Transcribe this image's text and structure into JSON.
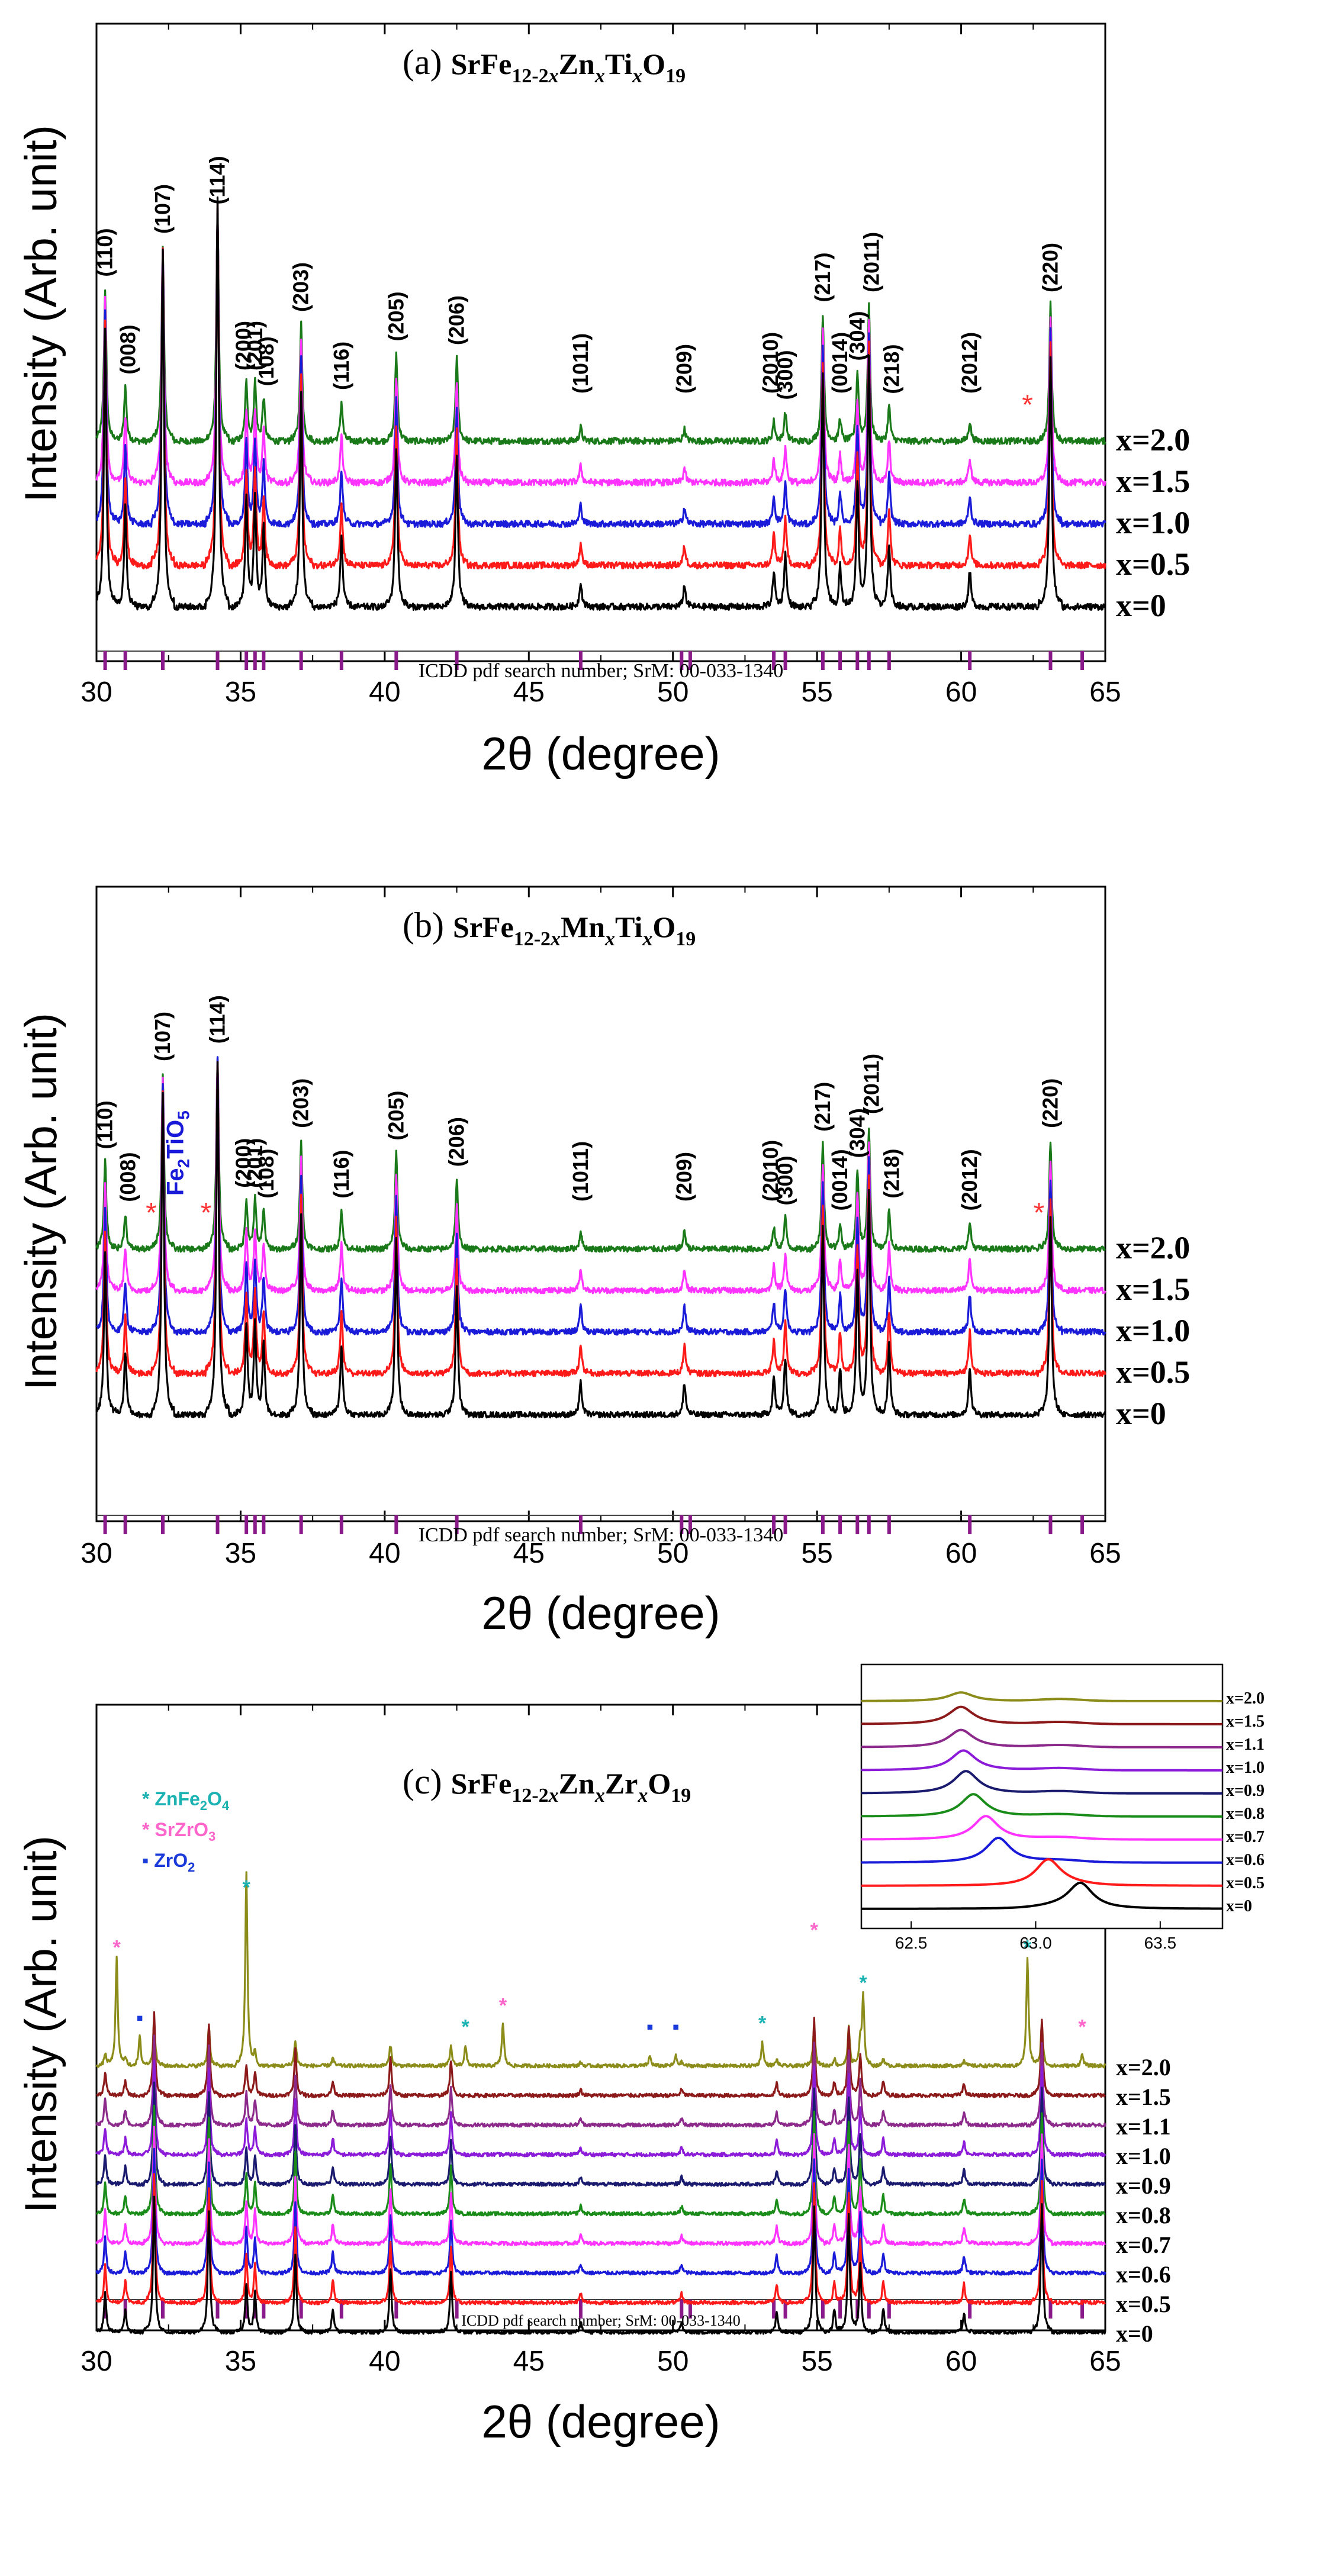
{
  "chart_data": [
    {
      "type": "line",
      "label": "(a)",
      "title_base": "SrFe",
      "title_parts": [
        "12-2",
        "x",
        "Zn",
        "x",
        "Ti",
        "x",
        "O",
        "19"
      ],
      "title": "(a) SrFe12-2xZnxTixO19",
      "xlabel": "2θ (degree)",
      "ylabel": "Intensity (Arb. unit)",
      "xlim": [
        30,
        65
      ],
      "xticks": [
        "30",
        "35",
        "40",
        "45",
        "50",
        "55",
        "60",
        "65"
      ],
      "reference_label": "ICDD pdf search number; SrM: 00-033-1340",
      "series": [
        {
          "name": "x=2.0",
          "color": "#1a7a1a"
        },
        {
          "name": "x=1.5",
          "color": "#ff33ff"
        },
        {
          "name": "x=1.0",
          "color": "#1a1ad9"
        },
        {
          "name": "x=0.5",
          "color": "#ff1a1a"
        },
        {
          "name": "x=0",
          "color": "#000000"
        }
      ],
      "peaks": [
        {
          "x": 30.3,
          "h": 0.78
        },
        {
          "x": 31.0,
          "h": 0.28
        },
        {
          "x": 32.3,
          "h": 1.0
        },
        {
          "x": 34.2,
          "h": 1.15
        },
        {
          "x": 35.2,
          "h": 0.3
        },
        {
          "x": 35.5,
          "h": 0.3
        },
        {
          "x": 35.8,
          "h": 0.22
        },
        {
          "x": 37.1,
          "h": 0.6
        },
        {
          "x": 38.5,
          "h": 0.2
        },
        {
          "x": 40.4,
          "h": 0.45
        },
        {
          "x": 42.5,
          "h": 0.43
        },
        {
          "x": 46.8,
          "h": 0.07
        },
        {
          "x": 50.4,
          "h": 0.06
        },
        {
          "x": 53.5,
          "h": 0.1
        },
        {
          "x": 53.9,
          "h": 0.15
        },
        {
          "x": 55.2,
          "h": 0.65
        },
        {
          "x": 55.8,
          "h": 0.12
        },
        {
          "x": 56.4,
          "h": 0.35
        },
        {
          "x": 56.8,
          "h": 0.7
        },
        {
          "x": 57.5,
          "h": 0.18
        },
        {
          "x": 60.3,
          "h": 0.1
        },
        {
          "x": 63.1,
          "h": 0.7
        }
      ],
      "hkl_labels": [
        {
          "label": "(110)",
          "x": 30.3
        },
        {
          "label": "(008)",
          "x": 31.1
        },
        {
          "label": "(107)",
          "x": 32.3
        },
        {
          "label": "(114)",
          "x": 34.2
        },
        {
          "label": "(200)",
          "x": 35.1
        },
        {
          "label": "(201)",
          "x": 35.5
        },
        {
          "label": "(108)",
          "x": 35.9
        },
        {
          "label": "(203)",
          "x": 37.1
        },
        {
          "label": "(116)",
          "x": 38.5
        },
        {
          "label": "(205)",
          "x": 40.4
        },
        {
          "label": "(206)",
          "x": 42.5
        },
        {
          "label": "(1011)",
          "x": 46.8
        },
        {
          "label": "(209)",
          "x": 50.4
        },
        {
          "label": "(2010)",
          "x": 53.4
        },
        {
          "label": "(300)",
          "x": 53.9
        },
        {
          "label": "(217)",
          "x": 55.2
        },
        {
          "label": "(0014)",
          "x": 55.8
        },
        {
          "label": "(304)",
          "x": 56.4
        },
        {
          "label": "(2011)",
          "x": 56.9
        },
        {
          "label": "(218)",
          "x": 57.6
        },
        {
          "label": "(2012)",
          "x": 60.3
        },
        {
          "label": "(220)",
          "x": 63.1
        }
      ],
      "impurity_marks": [
        {
          "x": 62.3,
          "symbol": "*",
          "series": "x=2.0"
        }
      ],
      "reference_peaks": [
        30.3,
        31.0,
        32.3,
        34.2,
        35.2,
        35.5,
        35.8,
        37.1,
        38.5,
        40.4,
        42.5,
        46.8,
        50.3,
        50.6,
        53.5,
        53.9,
        55.2,
        55.8,
        56.4,
        56.8,
        57.5,
        60.3,
        63.1,
        64.2
      ]
    },
    {
      "type": "line",
      "label": "(b)",
      "title_base": "SrFe",
      "title_parts": [
        "12-2",
        "x",
        "Mn",
        "x",
        "Ti",
        "x",
        "O",
        "19"
      ],
      "title": "(b) SrFe12-2xMnxTixO19",
      "xlabel": "2θ (degree)",
      "ylabel": "Intensity (Arb. unit)",
      "xlim": [
        30,
        65
      ],
      "xticks": [
        "30",
        "35",
        "40",
        "45",
        "50",
        "55",
        "60",
        "65"
      ],
      "reference_label": "ICDD pdf search number; SrM: 00-033-1340",
      "series": [
        {
          "name": "x=2.0",
          "color": "#1a7a1a"
        },
        {
          "name": "x=1.5",
          "color": "#ff33ff"
        },
        {
          "name": "x=1.0",
          "color": "#1a1ad9"
        },
        {
          "name": "x=0.5",
          "color": "#ff1a1a"
        },
        {
          "name": "x=0",
          "color": "#000000"
        }
      ],
      "peaks": [
        {
          "x": 30.3,
          "h": 0.5
        },
        {
          "x": 31.0,
          "h": 0.2
        },
        {
          "x": 32.3,
          "h": 1.0
        },
        {
          "x": 34.2,
          "h": 1.1
        },
        {
          "x": 35.2,
          "h": 0.28
        },
        {
          "x": 35.5,
          "h": 0.28
        },
        {
          "x": 35.8,
          "h": 0.22
        },
        {
          "x": 37.1,
          "h": 0.62
        },
        {
          "x": 38.5,
          "h": 0.22
        },
        {
          "x": 40.4,
          "h": 0.55
        },
        {
          "x": 42.5,
          "h": 0.4
        },
        {
          "x": 46.8,
          "h": 0.1
        },
        {
          "x": 50.4,
          "h": 0.1
        },
        {
          "x": 53.5,
          "h": 0.12
        },
        {
          "x": 53.9,
          "h": 0.18
        },
        {
          "x": 55.2,
          "h": 0.6
        },
        {
          "x": 55.8,
          "h": 0.15
        },
        {
          "x": 56.4,
          "h": 0.45
        },
        {
          "x": 56.8,
          "h": 0.7
        },
        {
          "x": 57.5,
          "h": 0.22
        },
        {
          "x": 60.3,
          "h": 0.15
        },
        {
          "x": 63.1,
          "h": 0.62
        }
      ],
      "hkl_labels": [
        {
          "label": "(110)",
          "x": 30.3
        },
        {
          "label": "(008)",
          "x": 31.1
        },
        {
          "label": "(107)",
          "x": 32.3
        },
        {
          "label": "(114)",
          "x": 34.2
        },
        {
          "label": "(200)",
          "x": 35.1
        },
        {
          "label": "(201)",
          "x": 35.5
        },
        {
          "label": "(108)",
          "x": 35.9
        },
        {
          "label": "(203)",
          "x": 37.1
        },
        {
          "label": "(116)",
          "x": 38.5
        },
        {
          "label": "(205)",
          "x": 40.4
        },
        {
          "label": "(206)",
          "x": 42.5
        },
        {
          "label": "(1011)",
          "x": 46.8
        },
        {
          "label": "(209)",
          "x": 50.4
        },
        {
          "label": "(2010)",
          "x": 53.4
        },
        {
          "label": "(300)",
          "x": 53.9
        },
        {
          "label": "(217)",
          "x": 55.2
        },
        {
          "label": "(0014)",
          "x": 55.8
        },
        {
          "label": "(304)",
          "x": 56.4
        },
        {
          "label": "(2011)",
          "x": 56.9
        },
        {
          "label": "(218)",
          "x": 57.6
        },
        {
          "label": "(2012)",
          "x": 60.3
        },
        {
          "label": "(220)",
          "x": 63.1
        }
      ],
      "phase_label": {
        "text": "Fe",
        "sub1": "2",
        "mid": "TiO",
        "sub2": "5",
        "x": 32.8,
        "color": "#1a1ad9"
      },
      "impurity_marks": [
        {
          "x": 31.9,
          "symbol": "*",
          "series": "x=2.0"
        },
        {
          "x": 33.8,
          "symbol": "*",
          "series": "x=2.0"
        },
        {
          "x": 62.7,
          "symbol": "*",
          "series": "x=2.0"
        }
      ],
      "reference_peaks": [
        30.3,
        31.0,
        32.3,
        34.2,
        35.2,
        35.5,
        35.8,
        37.1,
        38.5,
        40.4,
        42.5,
        46.8,
        50.3,
        50.6,
        53.5,
        53.9,
        55.2,
        55.8,
        56.4,
        56.8,
        57.5,
        60.3,
        63.1,
        64.2
      ]
    },
    {
      "type": "line",
      "label": "(c)",
      "title_base": "SrFe",
      "title_parts": [
        "12-2",
        "x",
        "Zn",
        "x",
        "Zr",
        "x",
        "O",
        "19"
      ],
      "title": "(c) SrFe12-2xZnxZrxO19",
      "xlabel": "2θ (degree)",
      "ylabel": "Intensity (Arb. unit)",
      "xlim": [
        30,
        65
      ],
      "xticks": [
        "30",
        "35",
        "40",
        "45",
        "50",
        "55",
        "60",
        "65"
      ],
      "reference_label": "ICDD pdf search number; SrM: 00-033-1340",
      "legend": [
        {
          "symbol": "*",
          "name": "ZnFe",
          "sub1": "2",
          "mid": "O",
          "sub2": "4",
          "color": "#1ab2b2"
        },
        {
          "symbol": "*",
          "name": "SrZrO",
          "sub1": "3",
          "mid": "",
          "sub2": "",
          "color": "#ff66cc"
        },
        {
          "symbol": "▪",
          "name": "ZrO",
          "sub1": "2",
          "mid": "",
          "sub2": "",
          "color": "#1a3ad9"
        }
      ],
      "series": [
        {
          "name": "x=2.0",
          "color": "#8c8c1a"
        },
        {
          "name": "x=1.5",
          "color": "#8c1a1a"
        },
        {
          "name": "x=1.1",
          "color": "#8c2a8c"
        },
        {
          "name": "x=1.0",
          "color": "#8c1ad9"
        },
        {
          "name": "x=0.9",
          "color": "#1a1a6e"
        },
        {
          "name": "x=0.8",
          "color": "#1a8c1a"
        },
        {
          "name": "x=0.7",
          "color": "#ff33ff"
        },
        {
          "name": "x=0.6",
          "color": "#1a1ad9"
        },
        {
          "name": "x=0.5",
          "color": "#ff1a1a"
        },
        {
          "name": "x=0",
          "color": "#000000"
        }
      ],
      "peaks": [
        {
          "x": 30.3,
          "h": 0.2
        },
        {
          "x": 31.0,
          "h": 0.12
        },
        {
          "x": 32.0,
          "h": 0.7
        },
        {
          "x": 33.9,
          "h": 0.62
        },
        {
          "x": 35.2,
          "h": 0.25
        },
        {
          "x": 35.5,
          "h": 0.2
        },
        {
          "x": 36.9,
          "h": 0.4
        },
        {
          "x": 38.2,
          "h": 0.12
        },
        {
          "x": 40.2,
          "h": 0.32
        },
        {
          "x": 42.3,
          "h": 0.3
        },
        {
          "x": 46.8,
          "h": 0.05
        },
        {
          "x": 50.3,
          "h": 0.05
        },
        {
          "x": 53.6,
          "h": 0.1
        },
        {
          "x": 54.9,
          "h": 0.65
        },
        {
          "x": 55.6,
          "h": 0.12
        },
        {
          "x": 56.1,
          "h": 0.6
        },
        {
          "x": 56.5,
          "h": 0.35
        },
        {
          "x": 57.3,
          "h": 0.12
        },
        {
          "x": 60.1,
          "h": 0.1
        },
        {
          "x": 62.8,
          "h": 0.65
        }
      ],
      "top_series_extra_peaks": [
        {
          "x": 30.7,
          "h": 0.55
        },
        {
          "x": 31.5,
          "h": 0.15
        },
        {
          "x": 35.2,
          "h": 0.9
        },
        {
          "x": 42.8,
          "h": 0.1
        },
        {
          "x": 44.1,
          "h": 0.22
        },
        {
          "x": 49.2,
          "h": 0.05
        },
        {
          "x": 50.1,
          "h": 0.05
        },
        {
          "x": 53.1,
          "h": 0.12
        },
        {
          "x": 56.6,
          "h": 0.35
        },
        {
          "x": 62.3,
          "h": 0.55
        },
        {
          "x": 64.2,
          "h": 0.06
        }
      ],
      "phase_marks": [
        {
          "x": 30.7,
          "symbol": "*",
          "color": "#ff66cc"
        },
        {
          "x": 31.5,
          "symbol": "▪",
          "color": "#1a3ad9"
        },
        {
          "x": 35.2,
          "symbol": "*",
          "color": "#1ab2b2"
        },
        {
          "x": 42.8,
          "symbol": "*",
          "color": "#1ab2b2"
        },
        {
          "x": 44.1,
          "symbol": "*",
          "color": "#ff66cc"
        },
        {
          "x": 49.2,
          "symbol": "▪",
          "color": "#1a3ad9"
        },
        {
          "x": 50.1,
          "symbol": "▪",
          "color": "#1a3ad9"
        },
        {
          "x": 53.1,
          "symbol": "*",
          "color": "#1ab2b2"
        },
        {
          "x": 54.9,
          "symbol": "*",
          "color": "#ff66cc"
        },
        {
          "x": 56.6,
          "symbol": "*",
          "color": "#1ab2b2"
        },
        {
          "x": 62.3,
          "symbol": "*",
          "color": "#1ab2b2"
        },
        {
          "x": 64.2,
          "symbol": "*",
          "color": "#ff66cc"
        }
      ],
      "reference_peaks": [
        30.3,
        31.0,
        32.3,
        34.2,
        35.2,
        35.5,
        35.8,
        37.1,
        38.5,
        40.4,
        42.5,
        46.8,
        50.3,
        50.6,
        53.5,
        53.9,
        55.2,
        55.8,
        56.4,
        56.8,
        57.5,
        60.3,
        63.1,
        64.2
      ],
      "inset": {
        "xlim": [
          62.3,
          63.75
        ],
        "xticks": [
          "62.5",
          "63.0",
          "63.5"
        ],
        "series": [
          {
            "name": "x=2.0",
            "peak": 62.7,
            "h": 0.35
          },
          {
            "name": "x=1.5",
            "peak": 62.7,
            "h": 0.7
          },
          {
            "name": "x=1.1",
            "peak": 62.7,
            "h": 0.7
          },
          {
            "name": "x=1.0",
            "peak": 62.71,
            "h": 0.8
          },
          {
            "name": "x=0.9",
            "peak": 62.72,
            "h": 0.9
          },
          {
            "name": "x=0.8",
            "peak": 62.75,
            "h": 0.9
          },
          {
            "name": "x=0.7",
            "peak": 62.8,
            "h": 0.95
          },
          {
            "name": "x=0.6",
            "peak": 62.85,
            "h": 1.0
          },
          {
            "name": "x=0.5",
            "peak": 63.05,
            "h": 1.0
          },
          {
            "name": "x=0",
            "peak": 63.18,
            "h": 1.0
          }
        ]
      }
    }
  ]
}
